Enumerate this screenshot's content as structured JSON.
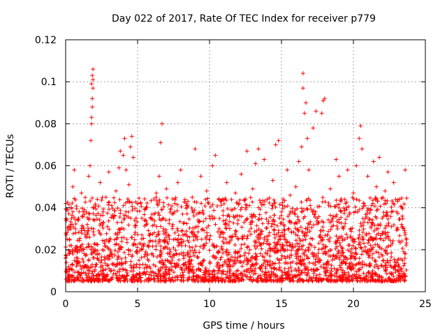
{
  "chart_data": {
    "type": "scatter",
    "title": "Day 022 of 2017, Rate Of TEC Index for receiver p779",
    "xlabel": "GPS time / hours",
    "ylabel": "ROTI / TECUs",
    "xlim": [
      0,
      25
    ],
    "ylim": [
      0,
      0.12
    ],
    "xticks": [
      0,
      5,
      10,
      15,
      20,
      25
    ],
    "xtick_labels": [
      "0",
      "5",
      "10",
      "15",
      "20",
      "25"
    ],
    "yticks": [
      0,
      0.02,
      0.04,
      0.06,
      0.08,
      0.1,
      0.12
    ],
    "ytick_labels": [
      "0",
      "0.02",
      "0.04",
      "0.06",
      "0.08",
      "0.1",
      "0.12"
    ],
    "grid": true,
    "marker": "+",
    "color": "#ff0000",
    "series": [
      {
        "points": [
          [
            0.0,
            0.016
          ],
          [
            0.0,
            0.042
          ],
          [
            0.1,
            0.025
          ],
          [
            0.2,
            0.012
          ],
          [
            0.3,
            0.031
          ],
          [
            0.4,
            0.022
          ],
          [
            0.5,
            0.05
          ],
          [
            0.5,
            0.018
          ],
          [
            0.6,
            0.058
          ],
          [
            0.7,
            0.028
          ],
          [
            0.8,
            0.014
          ],
          [
            0.9,
            0.035
          ],
          [
            1.0,
            0.021
          ],
          [
            1.1,
            0.047
          ],
          [
            1.2,
            0.012
          ],
          [
            1.3,
            0.039
          ],
          [
            1.4,
            0.026
          ],
          [
            1.5,
            0.032
          ],
          [
            1.6,
            0.055
          ],
          [
            1.7,
            0.06
          ],
          [
            1.75,
            0.072
          ],
          [
            1.8,
            0.08
          ],
          [
            1.8,
            0.083
          ],
          [
            1.85,
            0.088
          ],
          [
            1.85,
            0.092
          ],
          [
            1.8,
            0.099
          ],
          [
            1.85,
            0.103
          ],
          [
            1.9,
            0.106
          ],
          [
            1.9,
            0.101
          ],
          [
            1.9,
            0.097
          ],
          [
            2.0,
            0.034
          ],
          [
            2.1,
            0.018
          ],
          [
            2.2,
            0.044
          ],
          [
            2.3,
            0.029
          ],
          [
            2.4,
            0.052
          ],
          [
            2.5,
            0.015
          ],
          [
            2.6,
            0.038
          ],
          [
            2.7,
            0.024
          ],
          [
            2.8,
            0.045
          ],
          [
            2.9,
            0.031
          ],
          [
            3.0,
            0.057
          ],
          [
            3.1,
            0.02
          ],
          [
            3.2,
            0.041
          ],
          [
            3.3,
            0.013
          ],
          [
            3.4,
            0.036
          ],
          [
            3.5,
            0.048
          ],
          [
            3.6,
            0.027
          ],
          [
            3.7,
            0.059
          ],
          [
            3.8,
            0.067
          ],
          [
            3.9,
            0.021
          ],
          [
            4.0,
            0.065
          ],
          [
            4.1,
            0.073
          ],
          [
            4.2,
            0.058
          ],
          [
            4.3,
            0.043
          ],
          [
            4.4,
            0.051
          ],
          [
            4.5,
            0.069
          ],
          [
            4.6,
            0.074
          ],
          [
            4.7,
            0.064
          ],
          [
            4.8,
            0.034
          ],
          [
            4.9,
            0.019
          ],
          [
            5.0,
            0.042
          ],
          [
            5.1,
            0.015
          ],
          [
            5.2,
            0.005
          ],
          [
            5.3,
            0.027
          ],
          [
            5.5,
            0.039
          ],
          [
            5.7,
            0.022
          ],
          [
            5.9,
            0.035
          ],
          [
            6.1,
            0.017
          ],
          [
            6.3,
            0.047
          ],
          [
            6.5,
            0.055
          ],
          [
            6.6,
            0.071
          ],
          [
            6.7,
            0.08
          ],
          [
            6.8,
            0.03
          ],
          [
            7.0,
            0.049
          ],
          [
            7.2,
            0.018
          ],
          [
            7.4,
            0.037
          ],
          [
            7.6,
            0.028
          ],
          [
            7.8,
            0.052
          ],
          [
            8.0,
            0.058
          ],
          [
            8.2,
            0.024
          ],
          [
            8.4,
            0.041
          ],
          [
            8.6,
            0.012
          ],
          [
            8.8,
            0.045
          ],
          [
            9.0,
            0.068
          ],
          [
            9.2,
            0.031
          ],
          [
            9.4,
            0.055
          ],
          [
            9.6,
            0.022
          ],
          [
            9.8,
            0.048
          ],
          [
            10.0,
            0.036
          ],
          [
            10.2,
            0.06
          ],
          [
            10.4,
            0.065
          ],
          [
            10.6,
            0.019
          ],
          [
            10.8,
            0.043
          ],
          [
            11.0,
            0.028
          ],
          [
            11.2,
            0.052
          ],
          [
            11.4,
            0.015
          ],
          [
            11.6,
            0.039
          ],
          [
            11.8,
            0.047
          ],
          [
            12.0,
            0.025
          ],
          [
            12.2,
            0.056
          ],
          [
            12.4,
            0.033
          ],
          [
            12.6,
            0.067
          ],
          [
            12.8,
            0.02
          ],
          [
            13.0,
            0.049
          ],
          [
            13.2,
            0.061
          ],
          [
            13.4,
            0.068
          ],
          [
            13.6,
            0.029
          ],
          [
            13.8,
            0.063
          ],
          [
            14.0,
            0.044
          ],
          [
            14.2,
            0.017
          ],
          [
            14.4,
            0.053
          ],
          [
            14.6,
            0.07
          ],
          [
            14.8,
            0.072
          ],
          [
            15.0,
            0.038
          ],
          [
            15.2,
            0.025
          ],
          [
            15.4,
            0.058
          ],
          [
            15.6,
            0.046
          ],
          [
            15.8,
            0.021
          ],
          [
            16.0,
            0.05
          ],
          [
            16.2,
            0.062
          ],
          [
            16.4,
            0.069
          ],
          [
            16.5,
            0.097
          ],
          [
            16.5,
            0.104
          ],
          [
            16.6,
            0.085
          ],
          [
            16.7,
            0.09
          ],
          [
            16.8,
            0.073
          ],
          [
            16.9,
            0.058
          ],
          [
            17.0,
            0.041
          ],
          [
            17.2,
            0.078
          ],
          [
            17.4,
            0.086
          ],
          [
            17.6,
            0.033
          ],
          [
            17.8,
            0.085
          ],
          [
            17.9,
            0.091
          ],
          [
            18.0,
            0.092
          ],
          [
            18.2,
            0.027
          ],
          [
            18.4,
            0.049
          ],
          [
            18.6,
            0.036
          ],
          [
            18.8,
            0.063
          ],
          [
            19.0,
            0.055
          ],
          [
            19.2,
            0.021
          ],
          [
            19.4,
            0.044
          ],
          [
            19.6,
            0.058
          ],
          [
            19.8,
            0.03
          ],
          [
            20.0,
            0.047
          ],
          [
            20.2,
            0.06
          ],
          [
            20.4,
            0.073
          ],
          [
            20.5,
            0.079
          ],
          [
            20.6,
            0.068
          ],
          [
            20.8,
            0.041
          ],
          [
            21.0,
            0.055
          ],
          [
            21.2,
            0.026
          ],
          [
            21.4,
            0.062
          ],
          [
            21.6,
            0.05
          ],
          [
            21.8,
            0.064
          ],
          [
            22.0,
            0.035
          ],
          [
            22.2,
            0.048
          ],
          [
            22.4,
            0.057
          ],
          [
            22.6,
            0.022
          ],
          [
            22.8,
            0.052
          ],
          [
            23.0,
            0.038
          ],
          [
            23.2,
            0.044
          ],
          [
            23.4,
            0.031
          ],
          [
            23.6,
            0.058
          ],
          [
            23.7,
            0.025
          ]
        ]
      }
    ]
  }
}
